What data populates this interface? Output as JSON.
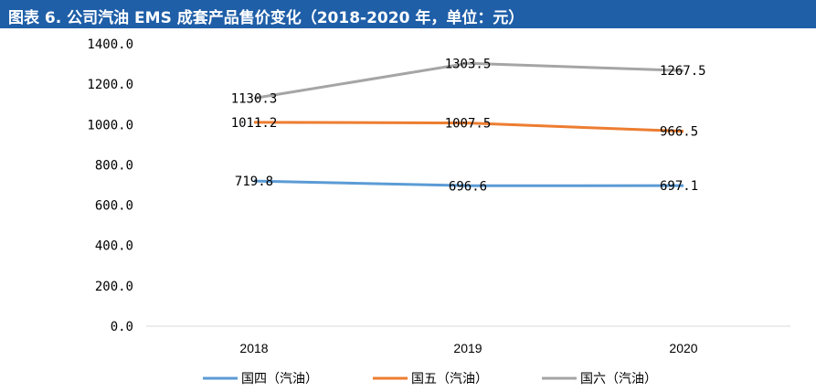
{
  "title": "图表 6.  公司汽油 EMS 成套产品售价变化（2018-2020 年，单位：元）",
  "chart_data": {
    "type": "line",
    "categories": [
      "2018",
      "2019",
      "2020"
    ],
    "ylim": [
      0,
      1400
    ],
    "ytick_labels": [
      "0.0",
      "200.0",
      "400.0",
      "600.0",
      "800.0",
      "1000.0",
      "1200.0",
      "1400.0"
    ],
    "grid": false,
    "legend_position": "bottom",
    "series": [
      {
        "name": "国四（汽油）",
        "color": "#5b9bd5",
        "values": [
          719.8,
          696.6,
          697.1
        ],
        "labels": [
          "719.8",
          "696.6",
          "697.1"
        ]
      },
      {
        "name": "国五（汽油）",
        "color": "#ed7d31",
        "values": [
          1011.2,
          1007.5,
          966.5
        ],
        "labels": [
          "1011.2",
          "1007.5",
          "966.5"
        ]
      },
      {
        "name": "国六（汽油）",
        "color": "#a5a5a5",
        "values": [
          1130.3,
          1303.5,
          1267.5
        ],
        "labels": [
          "1130.3",
          "1303.5",
          "1267.5"
        ]
      }
    ]
  }
}
